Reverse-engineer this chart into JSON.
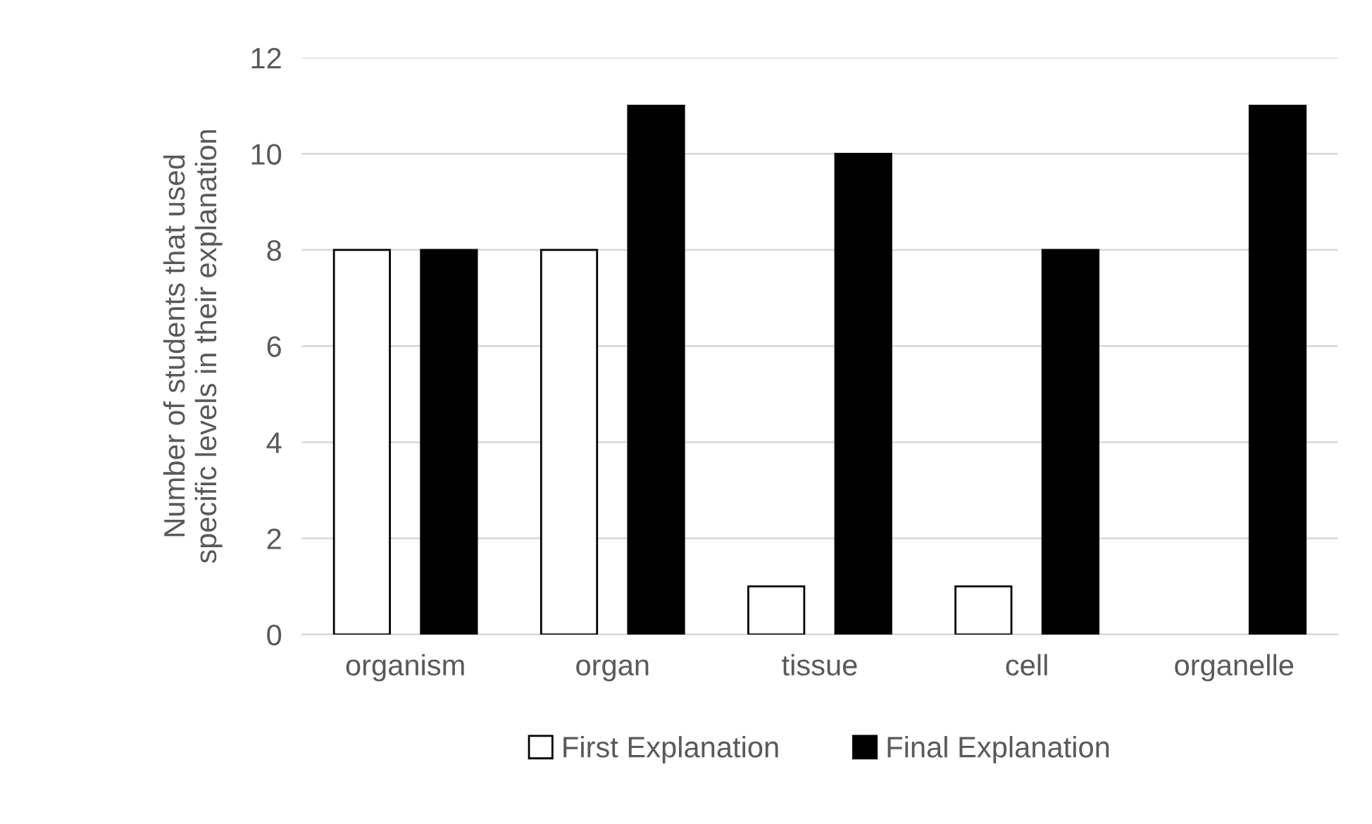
{
  "chart_data": {
    "type": "bar",
    "ylabel": "Number of students that used\nspecific levels in their explanation",
    "categories": [
      "organism",
      "organ",
      "tissue",
      "cell",
      "organelle"
    ],
    "series": [
      {
        "name": "First Explanation",
        "color": "#ffffff",
        "values": [
          8,
          8,
          1,
          1,
          0
        ]
      },
      {
        "name": "Final Explanation",
        "color": "#000000",
        "values": [
          8,
          11,
          10,
          8,
          11
        ]
      }
    ],
    "ylim": [
      0,
      12
    ],
    "yticks": [
      0,
      2,
      4,
      6,
      8,
      10,
      12
    ],
    "grid": "y",
    "legend": "bottom"
  }
}
